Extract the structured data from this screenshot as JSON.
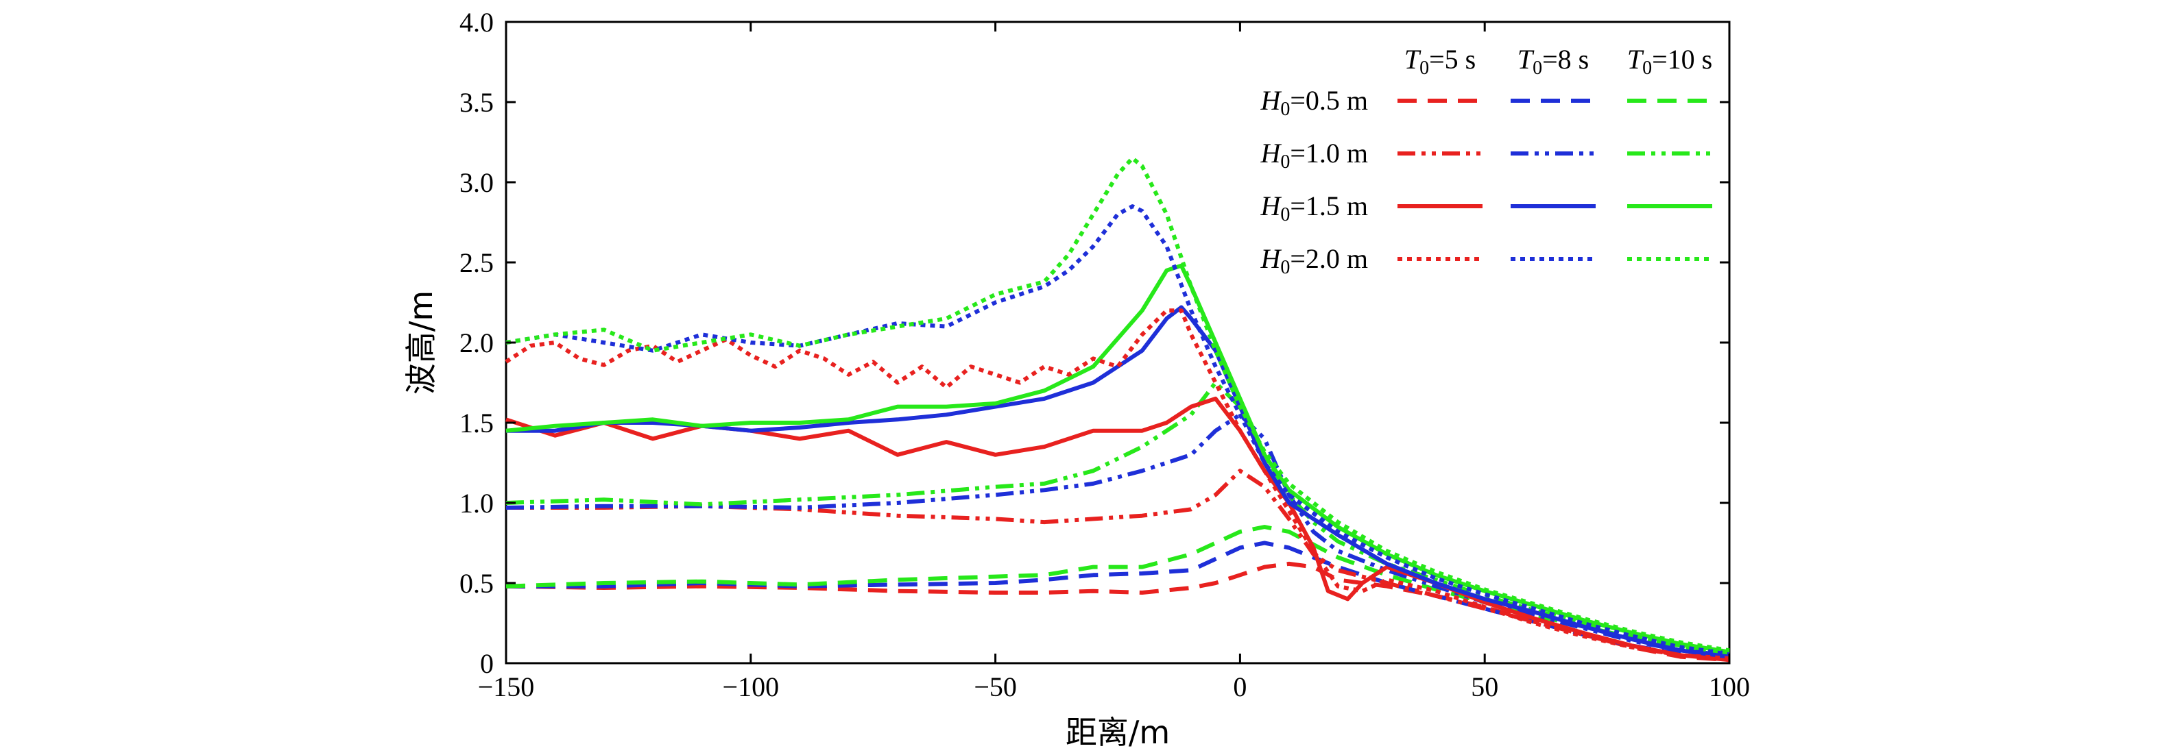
{
  "chart_data": {
    "type": "line",
    "xlabel": "距离/m",
    "ylabel": "波高/m",
    "xlim": [
      -150,
      100
    ],
    "ylim": [
      0,
      4.0
    ],
    "x_ticks": [
      "−150",
      "−100",
      "−50",
      "0",
      "50",
      "100"
    ],
    "x_tick_values": [
      -150,
      -100,
      -50,
      0,
      50,
      100
    ],
    "y_ticks": [
      "0",
      "0.5",
      "1.0",
      "1.5",
      "2.0",
      "2.5",
      "3.0",
      "3.5",
      "4.0"
    ],
    "y_tick_values": [
      0,
      0.5,
      1.0,
      1.5,
      2.0,
      2.5,
      3.0,
      3.5,
      4.0
    ],
    "grid": false,
    "legend": {
      "placement": "top-right",
      "columns": [
        {
          "italic": "T",
          "sub": "0",
          "rest": "=5 s",
          "color": "#e8211f"
        },
        {
          "italic": "T",
          "sub": "0",
          "rest": "=8 s",
          "color": "#1e2fd8"
        },
        {
          "italic": "T",
          "sub": "0",
          "rest": "=10 s",
          "color": "#27e81a"
        }
      ],
      "rows": [
        {
          "italic": "H",
          "sub": "0",
          "rest": "=0.5 m",
          "dash": "dashed"
        },
        {
          "italic": "H",
          "sub": "0",
          "rest": "=1.0 m",
          "dash": "dash-dot-dot"
        },
        {
          "italic": "H",
          "sub": "0",
          "rest": "=1.5 m",
          "dash": "solid"
        },
        {
          "italic": "H",
          "sub": "0",
          "rest": "=2.0 m",
          "dash": "dotted"
        }
      ]
    },
    "series": [
      {
        "T0": "5 s",
        "H0": "0.5 m",
        "color": "#e8211f",
        "dash": "dashed",
        "x": [
          -150,
          -130,
          -110,
          -90,
          -70,
          -50,
          -40,
          -30,
          -20,
          -10,
          -5,
          0,
          5,
          10,
          15,
          20,
          30,
          40,
          50,
          60,
          70,
          80,
          90,
          100
        ],
        "y": [
          0.48,
          0.47,
          0.48,
          0.47,
          0.45,
          0.44,
          0.44,
          0.45,
          0.44,
          0.47,
          0.5,
          0.55,
          0.6,
          0.62,
          0.6,
          0.52,
          0.48,
          0.42,
          0.35,
          0.26,
          0.18,
          0.1,
          0.04,
          0.02
        ]
      },
      {
        "T0": "8 s",
        "H0": "0.5 m",
        "color": "#1e2fd8",
        "dash": "dashed",
        "x": [
          -150,
          -130,
          -110,
          -90,
          -70,
          -50,
          -40,
          -30,
          -20,
          -10,
          -5,
          0,
          5,
          10,
          15,
          20,
          30,
          40,
          50,
          60,
          70,
          80,
          90,
          100
        ],
        "y": [
          0.48,
          0.48,
          0.5,
          0.48,
          0.49,
          0.5,
          0.52,
          0.55,
          0.56,
          0.58,
          0.65,
          0.72,
          0.75,
          0.72,
          0.66,
          0.6,
          0.5,
          0.42,
          0.34,
          0.26,
          0.18,
          0.11,
          0.06,
          0.04
        ]
      },
      {
        "T0": "10 s",
        "H0": "0.5 m",
        "color": "#27e81a",
        "dash": "dashed",
        "x": [
          -150,
          -130,
          -110,
          -90,
          -70,
          -50,
          -40,
          -30,
          -20,
          -10,
          -5,
          0,
          5,
          10,
          15,
          20,
          30,
          40,
          50,
          60,
          70,
          80,
          90,
          100
        ],
        "y": [
          0.48,
          0.5,
          0.51,
          0.49,
          0.52,
          0.54,
          0.55,
          0.6,
          0.6,
          0.68,
          0.75,
          0.82,
          0.85,
          0.82,
          0.74,
          0.66,
          0.55,
          0.46,
          0.38,
          0.3,
          0.23,
          0.16,
          0.1,
          0.06
        ]
      },
      {
        "T0": "5 s",
        "H0": "1.0 m",
        "color": "#e8211f",
        "dash": "dash-dot-dot",
        "x": [
          -150,
          -130,
          -110,
          -90,
          -70,
          -50,
          -40,
          -30,
          -20,
          -10,
          -5,
          0,
          5,
          10,
          15,
          20,
          30,
          40,
          50,
          60,
          70,
          80,
          90,
          100
        ],
        "y": [
          0.97,
          0.97,
          0.98,
          0.96,
          0.92,
          0.9,
          0.88,
          0.9,
          0.92,
          0.96,
          1.05,
          1.2,
          1.1,
          0.9,
          0.68,
          0.58,
          0.5,
          0.42,
          0.34,
          0.26,
          0.18,
          0.1,
          0.05,
          0.03
        ]
      },
      {
        "T0": "8 s",
        "H0": "1.0 m",
        "color": "#1e2fd8",
        "dash": "dash-dot-dot",
        "x": [
          -150,
          -130,
          -110,
          -90,
          -70,
          -50,
          -40,
          -30,
          -20,
          -10,
          -5,
          0,
          5,
          10,
          15,
          20,
          30,
          40,
          50,
          60,
          70,
          80,
          90,
          100
        ],
        "y": [
          0.97,
          0.98,
          0.98,
          0.97,
          1.0,
          1.05,
          1.08,
          1.12,
          1.2,
          1.3,
          1.45,
          1.55,
          1.4,
          1.05,
          0.82,
          0.7,
          0.58,
          0.48,
          0.38,
          0.3,
          0.22,
          0.14,
          0.08,
          0.05
        ]
      },
      {
        "T0": "10 s",
        "H0": "1.0 m",
        "color": "#27e81a",
        "dash": "dash-dot-dot",
        "x": [
          -150,
          -130,
          -110,
          -90,
          -70,
          -50,
          -40,
          -30,
          -20,
          -10,
          -5,
          0,
          5,
          10,
          15,
          20,
          30,
          40,
          50,
          60,
          70,
          80,
          90,
          100
        ],
        "y": [
          1.0,
          1.02,
          0.99,
          1.02,
          1.05,
          1.1,
          1.12,
          1.2,
          1.35,
          1.55,
          1.75,
          1.6,
          1.3,
          1.05,
          0.88,
          0.76,
          0.62,
          0.52,
          0.42,
          0.33,
          0.25,
          0.17,
          0.11,
          0.06
        ]
      },
      {
        "T0": "5 s",
        "H0": "1.5 m",
        "color": "#e8211f",
        "dash": "solid",
        "x": [
          -150,
          -140,
          -130,
          -120,
          -110,
          -100,
          -90,
          -80,
          -70,
          -60,
          -50,
          -40,
          -30,
          -20,
          -15,
          -10,
          -5,
          0,
          5,
          10,
          15,
          18,
          22,
          25,
          30,
          40,
          50,
          60,
          70,
          80,
          90,
          100
        ],
        "y": [
          1.52,
          1.42,
          1.5,
          1.4,
          1.48,
          1.45,
          1.4,
          1.45,
          1.3,
          1.38,
          1.3,
          1.35,
          1.45,
          1.45,
          1.5,
          1.6,
          1.65,
          1.45,
          1.2,
          1.0,
          0.72,
          0.45,
          0.4,
          0.5,
          0.6,
          0.5,
          0.38,
          0.28,
          0.19,
          0.11,
          0.05,
          0.02
        ]
      },
      {
        "T0": "8 s",
        "H0": "1.5 m",
        "color": "#1e2fd8",
        "dash": "solid",
        "x": [
          -150,
          -140,
          -130,
          -120,
          -110,
          -100,
          -90,
          -80,
          -70,
          -60,
          -50,
          -40,
          -30,
          -20,
          -15,
          -12,
          -10,
          -5,
          0,
          5,
          10,
          20,
          30,
          40,
          50,
          60,
          70,
          80,
          90,
          100
        ],
        "y": [
          1.45,
          1.45,
          1.5,
          1.5,
          1.48,
          1.45,
          1.47,
          1.5,
          1.52,
          1.55,
          1.6,
          1.65,
          1.75,
          1.95,
          2.15,
          2.22,
          2.15,
          1.95,
          1.6,
          1.25,
          1.0,
          0.8,
          0.62,
          0.5,
          0.4,
          0.32,
          0.23,
          0.15,
          0.08,
          0.04
        ]
      },
      {
        "T0": "10 s",
        "H0": "1.5 m",
        "color": "#27e81a",
        "dash": "solid",
        "x": [
          -150,
          -140,
          -130,
          -120,
          -110,
          -100,
          -90,
          -80,
          -70,
          -60,
          -50,
          -40,
          -30,
          -20,
          -15,
          -12,
          -10,
          -5,
          0,
          5,
          10,
          20,
          30,
          40,
          50,
          60,
          70,
          80,
          90,
          100
        ],
        "y": [
          1.45,
          1.48,
          1.5,
          1.52,
          1.48,
          1.5,
          1.5,
          1.52,
          1.6,
          1.6,
          1.62,
          1.7,
          1.85,
          2.2,
          2.45,
          2.48,
          2.35,
          2.0,
          1.65,
          1.3,
          1.08,
          0.85,
          0.68,
          0.55,
          0.45,
          0.36,
          0.27,
          0.19,
          0.12,
          0.07
        ]
      },
      {
        "T0": "5 s",
        "H0": "2.0 m",
        "color": "#e8211f",
        "dash": "dotted",
        "x": [
          -150,
          -145,
          -140,
          -135,
          -130,
          -125,
          -120,
          -115,
          -110,
          -105,
          -100,
          -95,
          -90,
          -85,
          -80,
          -75,
          -70,
          -65,
          -60,
          -55,
          -50,
          -45,
          -40,
          -35,
          -30,
          -25,
          -20,
          -15,
          -12,
          -10,
          -5,
          0,
          5,
          10,
          15,
          20,
          25,
          30,
          40,
          50,
          60,
          70,
          80,
          90,
          100
        ],
        "y": [
          1.88,
          1.98,
          2.0,
          1.9,
          1.86,
          1.95,
          1.98,
          1.88,
          1.95,
          2.02,
          1.92,
          1.85,
          1.95,
          1.9,
          1.8,
          1.88,
          1.75,
          1.85,
          1.72,
          1.85,
          1.8,
          1.75,
          1.85,
          1.8,
          1.9,
          1.85,
          2.05,
          2.2,
          2.2,
          2.05,
          1.75,
          1.45,
          1.2,
          0.95,
          0.7,
          0.48,
          0.45,
          0.52,
          0.45,
          0.35,
          0.25,
          0.17,
          0.1,
          0.05,
          0.03
        ]
      },
      {
        "T0": "8 s",
        "H0": "2.0 m",
        "color": "#1e2fd8",
        "dash": "dotted",
        "x": [
          -150,
          -140,
          -130,
          -120,
          -110,
          -100,
          -90,
          -80,
          -70,
          -60,
          -50,
          -40,
          -35,
          -30,
          -25,
          -22,
          -20,
          -15,
          -10,
          -5,
          0,
          5,
          10,
          20,
          30,
          40,
          50,
          60,
          70,
          80,
          90,
          100
        ],
        "y": [
          2.0,
          2.05,
          2.0,
          1.95,
          2.05,
          2.0,
          1.98,
          2.05,
          2.12,
          2.1,
          2.25,
          2.35,
          2.45,
          2.6,
          2.8,
          2.85,
          2.82,
          2.6,
          2.2,
          1.85,
          1.55,
          1.25,
          1.05,
          0.82,
          0.66,
          0.53,
          0.43,
          0.34,
          0.25,
          0.17,
          0.1,
          0.06
        ]
      },
      {
        "T0": "10 s",
        "H0": "2.0 m",
        "color": "#27e81a",
        "dash": "dotted",
        "x": [
          -150,
          -140,
          -130,
          -120,
          -110,
          -100,
          -90,
          -80,
          -70,
          -60,
          -50,
          -40,
          -35,
          -30,
          -25,
          -22,
          -20,
          -15,
          -10,
          -5,
          0,
          5,
          10,
          20,
          30,
          40,
          50,
          60,
          70,
          80,
          90,
          100
        ],
        "y": [
          2.0,
          2.05,
          2.08,
          1.95,
          2.0,
          2.05,
          1.98,
          2.05,
          2.1,
          2.15,
          2.3,
          2.38,
          2.55,
          2.8,
          3.05,
          3.15,
          3.1,
          2.8,
          2.35,
          1.95,
          1.6,
          1.32,
          1.12,
          0.88,
          0.7,
          0.57,
          0.46,
          0.37,
          0.28,
          0.2,
          0.13,
          0.08
        ]
      }
    ]
  }
}
